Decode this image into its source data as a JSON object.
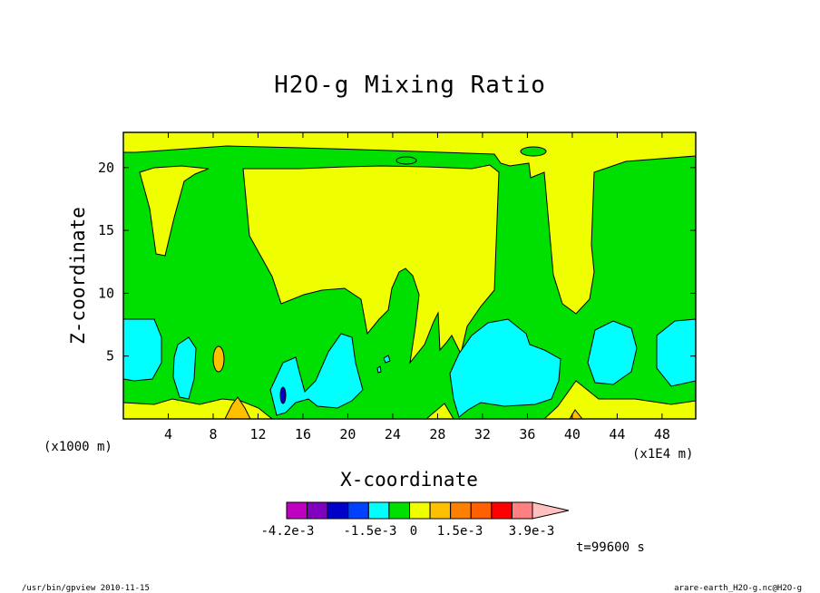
{
  "chart_data": {
    "type": "heatmap",
    "title": "H2O-g Mixing Ratio",
    "xlabel": "X-coordinate",
    "ylabel": "Z-coordinate",
    "x_unit_left": "(x1000 m)",
    "x_unit_right": "(x1E4 m)",
    "xlim": [
      0,
      51
    ],
    "ylim": [
      0,
      22.8
    ],
    "x_ticks": [
      4,
      8,
      12,
      16,
      20,
      24,
      28,
      32,
      36,
      40,
      44,
      48
    ],
    "y_ticks": [
      5,
      10,
      15,
      20
    ],
    "time_label": "t=99600 s",
    "colorbar": {
      "colors": [
        "#c000c0",
        "#7f00bf",
        "#0000c8",
        "#0040ff",
        "#00ffff",
        "#00e000",
        "#f0ff00",
        "#ffc000",
        "#ff8000",
        "#ff6000",
        "#ff0000",
        "#ff8080",
        "#ffc0c0"
      ],
      "labels": [
        "-4.2e-3",
        "-1.5e-3",
        "0",
        "1.5e-3",
        "3.9e-3"
      ]
    },
    "regions": [
      {
        "level": "green",
        "color": "#00e000",
        "x": [
          0,
          2,
          3,
          5.5,
          8,
          11,
          13,
          14.5,
          16,
          17.5,
          19,
          20.5,
          22.5,
          24.5,
          25.5,
          26.5,
          27.5,
          28.5,
          30,
          31,
          32.5,
          33.5,
          35,
          37,
          38.5,
          40,
          41.5,
          43,
          45,
          47,
          49,
          51
        ],
        "z": [
          22.5,
          20,
          14,
          13,
          20,
          15,
          10,
          7,
          8.5,
          10,
          10.5,
          9,
          7,
          8,
          10.5,
          9,
          7,
          8.5,
          8,
          9,
          16,
          21,
          21,
          20,
          9,
          8.5,
          11,
          17,
          20.5,
          20,
          21.5,
          22.5
        ]
      },
      {
        "level": "cyan",
        "color": "#00ffff",
        "x": [
          0,
          1.5,
          3,
          4.5,
          5.5,
          6.5,
          7.5,
          8.5,
          9.5,
          10,
          12,
          13,
          14,
          15.5,
          17,
          18.5,
          20,
          21,
          21.5,
          22.5,
          24,
          25,
          26.5,
          28,
          29,
          30,
          30.5,
          31.5,
          33,
          34.5,
          36,
          37.5,
          38.5,
          40,
          41,
          42,
          43,
          44.5,
          45.5,
          46.5,
          48,
          49.5,
          51
        ],
        "z": [
          8,
          7,
          3,
          6,
          5,
          3,
          1.5,
          3,
          1,
          0.5,
          0,
          1.5,
          2.5,
          4,
          3,
          6,
          5.5,
          1.5,
          2.5,
          4.5,
          4,
          3,
          1.5,
          2.5,
          1,
          0,
          1.5,
          6,
          7.5,
          6,
          1.5,
          2.5,
          4,
          3,
          1.5,
          3,
          5,
          7,
          3,
          2,
          6,
          8,
          8
        ]
      },
      {
        "level": "blue",
        "color": "#0000c8",
        "x": [
          14.2,
          14.3
        ],
        "z": [
          1.5,
          2.5
        ]
      },
      {
        "level": "orange",
        "color": "#ffc000",
        "x": [
          6.5,
          7.5,
          9.5,
          10.5,
          40
        ],
        "z": [
          0.3,
          4.5,
          0.5,
          1.8,
          0.6
        ]
      }
    ]
  },
  "footer": {
    "left": "/usr/bin/gpview   2010-11-15",
    "right": "arare-earth_H2O-g.nc@H2O-g"
  }
}
